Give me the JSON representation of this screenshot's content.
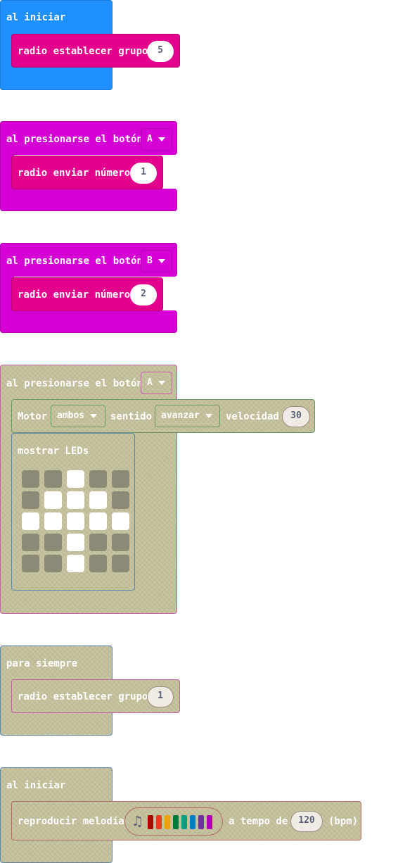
{
  "colors": {
    "blue": "#1e90ff",
    "magenta": "#d400d4",
    "pink": "#e3008c",
    "disabled": "#c2bf9a"
  },
  "block1": {
    "hat": "al iniciar",
    "stmt": "radio establecer grupo",
    "value": "5"
  },
  "block2": {
    "hat": "al presionarse el botón",
    "button": "A",
    "stmt": "radio enviar número",
    "value": "1"
  },
  "block3": {
    "hat": "al presionarse el botón",
    "button": "B",
    "stmt": "radio enviar número",
    "value": "2"
  },
  "block4": {
    "hat": "al presionarse el botón",
    "button": "A",
    "motor": {
      "label": "Motor",
      "which": "ambos",
      "dir_label": "sentido",
      "dir": "avanzar",
      "speed_label": "velocidad",
      "speed": "30"
    },
    "leds": {
      "label": "mostrar LEDs",
      "grid": [
        [
          0,
          0,
          1,
          0,
          0
        ],
        [
          0,
          1,
          1,
          1,
          0
        ],
        [
          1,
          1,
          1,
          1,
          1
        ],
        [
          0,
          0,
          1,
          0,
          0
        ],
        [
          0,
          0,
          1,
          0,
          0
        ]
      ]
    }
  },
  "block5": {
    "hat": "para siempre",
    "stmt": "radio establecer grupo",
    "value": "1"
  },
  "block6": {
    "hat": "al iniciar",
    "stmt": "reproducir melodía",
    "melody_icon": "music-note-icon",
    "melody_colors": [
      "#b50000",
      "#e04020",
      "#f0a000",
      "#007a3d",
      "#00a080",
      "#0080c0",
      "#7030a0",
      "#b000b0"
    ],
    "tempo_label": "a tempo de",
    "tempo": "120",
    "unit": "(bpm)"
  }
}
